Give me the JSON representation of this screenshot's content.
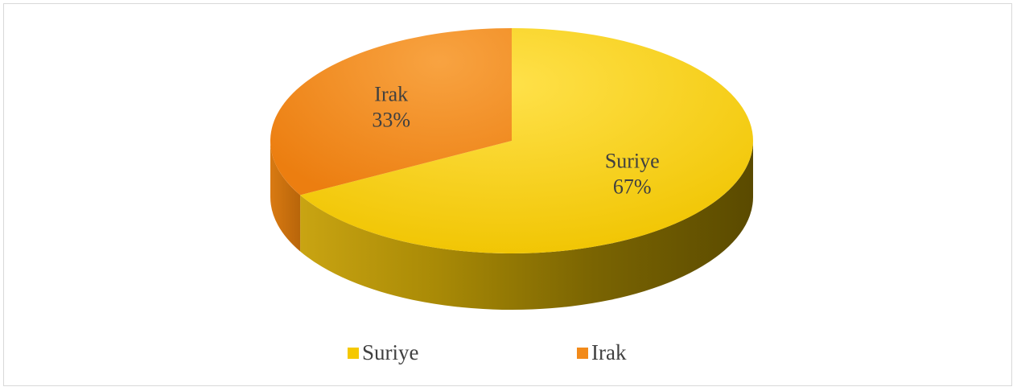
{
  "chart_data": {
    "type": "pie",
    "style": "3d",
    "title": "",
    "categories": [
      "Suriye",
      "Irak"
    ],
    "values": [
      67,
      33
    ],
    "labels": [
      "Suriye\n67%",
      "Irak\n33%"
    ],
    "colors": [
      "#F5C800",
      "#F28A1A"
    ],
    "legend_position": "bottom",
    "legend": [
      {
        "label": "Suriye",
        "color": "#F5C800"
      },
      {
        "label": "Irak",
        "color": "#F28A1A"
      }
    ]
  }
}
